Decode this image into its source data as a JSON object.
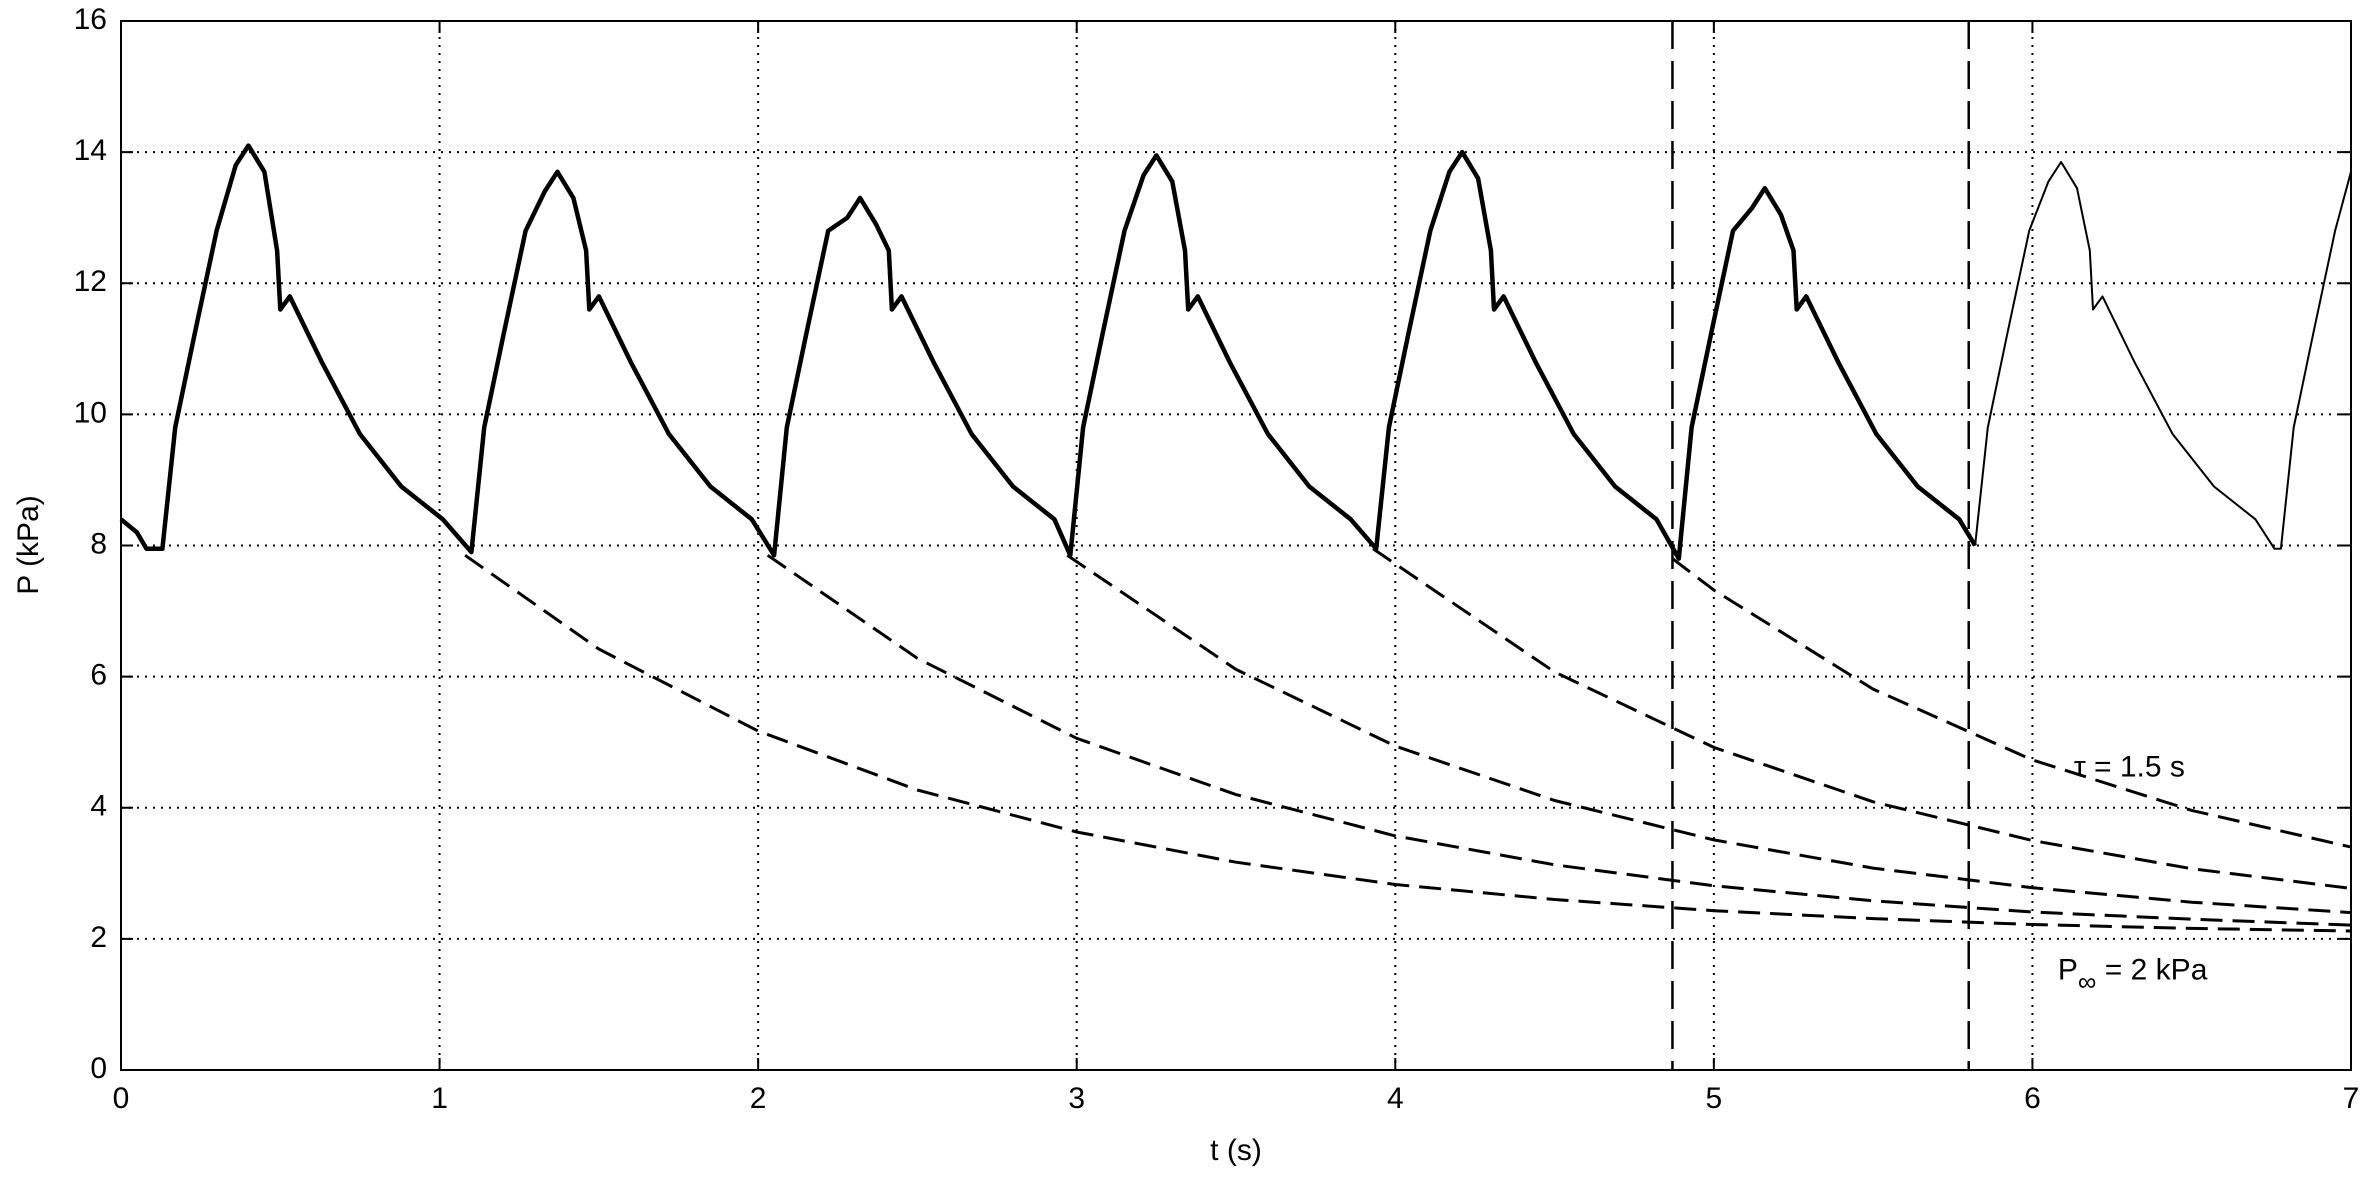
{
  "chart_data": {
    "type": "line",
    "x_label": "t  (s)",
    "y_label": "P  (kPa)",
    "xlim": [
      0,
      7
    ],
    "ylim": [
      0,
      16
    ],
    "xticks": [
      0,
      1,
      2,
      3,
      4,
      5,
      6,
      7
    ],
    "yticks": [
      0,
      2,
      4,
      6,
      8,
      10,
      12,
      14,
      16
    ],
    "grid": true,
    "series": [
      {
        "color": "#000000",
        "style": "bold",
        "x": [
          0,
          0.05,
          0.08,
          0.13,
          0.17,
          0.23,
          0.3,
          0.36,
          0.4,
          0.45,
          0.49,
          0.5,
          0.53,
          0.63,
          0.75,
          0.88,
          1.01,
          1.1,
          1.14,
          1.2,
          1.27,
          1.33,
          1.37,
          1.42,
          1.46,
          1.47,
          1.5,
          1.6,
          1.72,
          1.85,
          1.98,
          2.05,
          2.09,
          2.15,
          2.22,
          2.28,
          2.32,
          2.37,
          2.41,
          2.42,
          2.45,
          2.55,
          2.67,
          2.8,
          2.93,
          2.98,
          3.02,
          3.08,
          3.15,
          3.21,
          3.25,
          3.3,
          3.34,
          3.35,
          3.38,
          3.48,
          3.6,
          3.73,
          3.86,
          3.94,
          3.98,
          4.04,
          4.11,
          4.17,
          4.21,
          4.26,
          4.3,
          4.31,
          4.34,
          4.44,
          4.56,
          4.69,
          4.82,
          4.89,
          4.93,
          4.99,
          5.06,
          5.12,
          5.16,
          5.21,
          5.25,
          5.26,
          5.29,
          5.39,
          5.51,
          5.64,
          5.77,
          5.82
        ],
        "values": [
          8.4,
          8.2,
          7.95,
          7.95,
          9.8,
          11.2,
          12.8,
          13.8,
          14.1,
          13.7,
          12.5,
          11.6,
          11.8,
          10.8,
          9.7,
          8.9,
          8.4,
          7.9,
          9.8,
          11.2,
          12.8,
          13.4,
          13.7,
          13.3,
          12.5,
          11.6,
          11.8,
          10.8,
          9.7,
          8.9,
          8.4,
          7.85,
          9.8,
          11.2,
          12.8,
          13.0,
          13.3,
          12.9,
          12.5,
          11.6,
          11.8,
          10.8,
          9.7,
          8.9,
          8.4,
          7.85,
          9.8,
          11.2,
          12.8,
          13.65,
          13.95,
          13.55,
          12.5,
          11.6,
          11.8,
          10.8,
          9.7,
          8.9,
          8.4,
          7.95,
          9.8,
          11.2,
          12.8,
          13.7,
          14.0,
          13.6,
          12.5,
          11.6,
          11.8,
          10.8,
          9.7,
          8.9,
          8.4,
          7.8,
          9.8,
          11.2,
          12.8,
          13.15,
          13.45,
          13.05,
          12.5,
          11.6,
          11.8,
          10.8,
          9.7,
          8.9,
          8.4,
          8.0
        ]
      },
      {
        "color": "#000000",
        "style": "thin",
        "x": [
          5.82,
          5.86,
          5.92,
          5.99,
          6.05,
          6.09,
          6.14,
          6.18,
          6.19,
          6.22,
          6.32,
          6.44,
          6.57,
          6.7,
          6.76,
          6.78,
          6.82,
          6.88,
          6.95,
          7.0
        ],
        "values": [
          8.0,
          9.8,
          11.2,
          12.8,
          13.55,
          13.85,
          13.45,
          12.5,
          11.6,
          11.8,
          10.8,
          9.7,
          8.9,
          8.4,
          7.95,
          7.95,
          9.8,
          11.2,
          12.8,
          13.7
        ]
      },
      {
        "color": "#000000",
        "style": "dashed",
        "x": [
          1.08,
          1.5,
          2,
          2.5,
          3,
          3.5,
          4,
          4.5,
          5,
          5.5,
          6,
          6.5,
          7
        ],
        "values": [
          7.85,
          6.42,
          5.17,
          4.27,
          3.63,
          3.17,
          2.83,
          2.6,
          2.43,
          2.31,
          2.22,
          2.16,
          2.12
        ]
      },
      {
        "color": "#000000",
        "style": "dashed",
        "x": [
          2.03,
          2.5,
          3,
          3.5,
          4,
          4.5,
          5,
          5.5,
          6,
          6.5,
          7
        ],
        "values": [
          7.85,
          6.28,
          5.06,
          4.2,
          3.57,
          3.13,
          2.81,
          2.58,
          2.41,
          2.3,
          2.21
        ]
      },
      {
        "color": "#000000",
        "style": "dashed",
        "x": [
          2.97,
          3.5,
          4,
          4.5,
          5,
          5.5,
          6,
          6.5,
          7
        ],
        "values": [
          7.85,
          6.11,
          4.94,
          4.11,
          3.51,
          3.08,
          2.78,
          2.56,
          2.4
        ]
      },
      {
        "color": "#000000",
        "style": "dashed",
        "x": [
          3.93,
          4.5,
          5,
          5.5,
          6,
          6.5,
          7
        ],
        "values": [
          7.95,
          6.07,
          4.92,
          4.09,
          3.5,
          3.07,
          2.77
        ]
      },
      {
        "color": "#000000",
        "style": "dashed",
        "x": [
          4.87,
          5,
          5.5,
          6,
          6.5,
          7
        ],
        "values": [
          7.8,
          7.32,
          5.81,
          4.73,
          3.96,
          3.4
        ]
      }
    ],
    "vlines": [
      4.87,
      5.8
    ],
    "annotations": {
      "tau": "τ = 1.5 s",
      "p_inf": {
        "main": "P",
        "sub": "∞",
        "rest": " = 2 kPa"
      }
    }
  }
}
